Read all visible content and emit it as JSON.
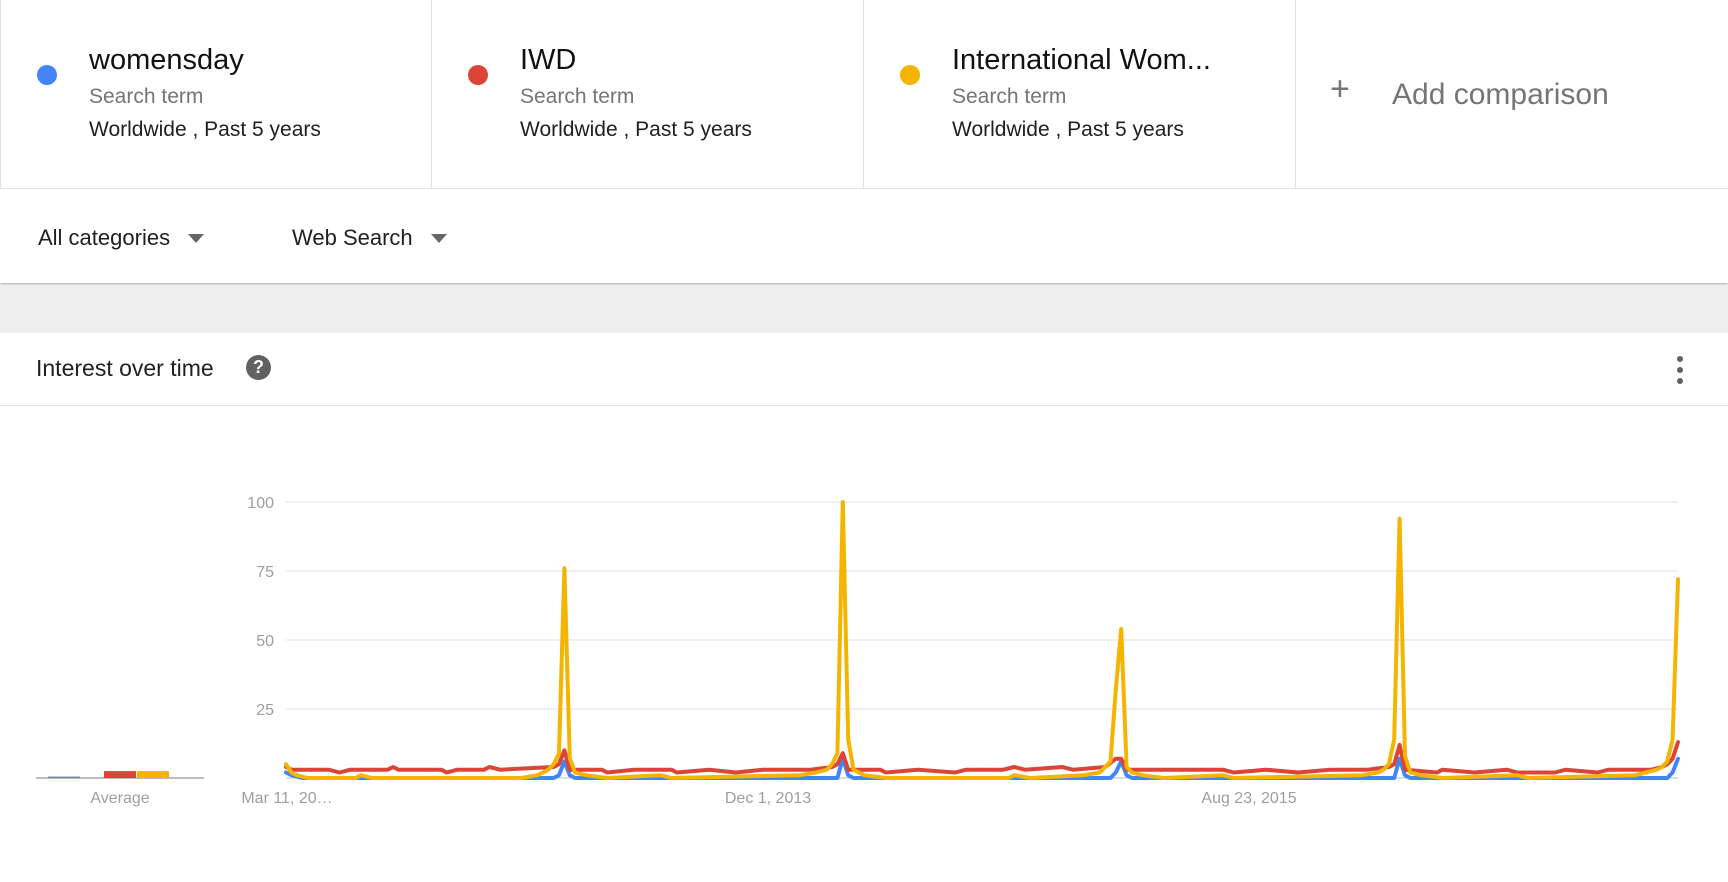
{
  "terms": [
    {
      "name": "womensday",
      "type": "Search term",
      "scope": "Worldwide , Past 5 years",
      "color": "#4285f4"
    },
    {
      "name": "IWD",
      "type": "Search term",
      "scope": "Worldwide , Past 5 years",
      "color": "#db4437"
    },
    {
      "name": "International Wom...",
      "type": "Search term",
      "scope": "Worldwide , Past 5 years",
      "color": "#f4b400"
    }
  ],
  "add_comparison": {
    "icon": "plus-icon",
    "label": "Add comparison"
  },
  "filters": {
    "category": "All categories",
    "search_type": "Web Search"
  },
  "card": {
    "title": "Interest over time",
    "help_icon": "question-icon",
    "menu_icon": "more-vert-icon"
  },
  "chart_data": {
    "type": "line",
    "title": "Interest over time",
    "ylim": [
      0,
      100
    ],
    "yticks": [
      25,
      50,
      75,
      100
    ],
    "x_tick_labels": [
      "Mar 11, 20…",
      "Dec 1, 2013",
      "Aug 23, 2015"
    ],
    "x_start": "2012-03-11",
    "x_end": "2017-03-05",
    "average_label": "Average",
    "average": [
      {
        "name": "womensday",
        "value": 0.5
      },
      {
        "name": "IWD",
        "value": 2.5
      },
      {
        "name": "International Wom...",
        "value": 2.5
      }
    ],
    "series": [
      {
        "name": "womensday",
        "color": "#4285f4",
        "points": [
          [
            "2012-03-11",
            2
          ],
          [
            "2012-03-18",
            1
          ],
          [
            "2012-04-01",
            0
          ],
          [
            "2013-02-24",
            0
          ],
          [
            "2013-03-03",
            1
          ],
          [
            "2013-03-10",
            6
          ],
          [
            "2013-03-17",
            1
          ],
          [
            "2013-03-24",
            0
          ],
          [
            "2014-03-02",
            0
          ],
          [
            "2014-03-09",
            7
          ],
          [
            "2014-03-16",
            1
          ],
          [
            "2014-03-23",
            0
          ],
          [
            "2015-02-22",
            0
          ],
          [
            "2015-03-01",
            2
          ],
          [
            "2015-03-08",
            6
          ],
          [
            "2015-03-15",
            1
          ],
          [
            "2015-03-22",
            0
          ],
          [
            "2016-02-28",
            0
          ],
          [
            "2016-03-06",
            7
          ],
          [
            "2016-03-13",
            1
          ],
          [
            "2016-03-20",
            0
          ],
          [
            "2017-02-19",
            0
          ],
          [
            "2017-02-26",
            2
          ],
          [
            "2017-03-05",
            7
          ]
        ]
      },
      {
        "name": "IWD",
        "color": "#db4437",
        "points": [
          [
            "2012-03-11",
            4
          ],
          [
            "2012-03-18",
            3
          ],
          [
            "2012-05-06",
            3
          ],
          [
            "2012-05-20",
            2
          ],
          [
            "2012-06-03",
            3
          ],
          [
            "2012-07-22",
            3
          ],
          [
            "2012-07-29",
            4
          ],
          [
            "2012-08-05",
            3
          ],
          [
            "2012-09-30",
            3
          ],
          [
            "2012-10-07",
            2
          ],
          [
            "2012-10-21",
            3
          ],
          [
            "2012-11-25",
            3
          ],
          [
            "2012-12-02",
            4
          ],
          [
            "2012-12-16",
            3
          ],
          [
            "2013-02-24",
            4
          ],
          [
            "2013-03-03",
            5
          ],
          [
            "2013-03-10",
            10
          ],
          [
            "2013-03-17",
            3
          ],
          [
            "2013-04-28",
            3
          ],
          [
            "2013-05-05",
            2
          ],
          [
            "2013-06-09",
            3
          ],
          [
            "2013-07-28",
            3
          ],
          [
            "2013-08-04",
            2
          ],
          [
            "2013-09-15",
            3
          ],
          [
            "2013-10-20",
            2
          ],
          [
            "2013-11-24",
            3
          ],
          [
            "2014-01-26",
            3
          ],
          [
            "2014-02-23",
            4
          ],
          [
            "2014-03-02",
            5
          ],
          [
            "2014-03-09",
            9
          ],
          [
            "2014-03-16",
            3
          ],
          [
            "2014-04-27",
            3
          ],
          [
            "2014-05-04",
            2
          ],
          [
            "2014-06-15",
            3
          ],
          [
            "2014-08-03",
            2
          ],
          [
            "2014-08-17",
            3
          ],
          [
            "2014-10-05",
            3
          ],
          [
            "2014-10-19",
            4
          ],
          [
            "2014-11-02",
            3
          ],
          [
            "2014-12-21",
            4
          ],
          [
            "2015-01-04",
            3
          ],
          [
            "2015-02-15",
            4
          ],
          [
            "2015-03-01",
            7
          ],
          [
            "2015-03-08",
            7
          ],
          [
            "2015-03-15",
            3
          ],
          [
            "2015-04-26",
            3
          ],
          [
            "2015-06-07",
            3
          ],
          [
            "2015-07-19",
            3
          ],
          [
            "2015-08-02",
            2
          ],
          [
            "2015-09-13",
            3
          ],
          [
            "2015-10-25",
            2
          ],
          [
            "2015-12-06",
            3
          ],
          [
            "2016-01-24",
            3
          ],
          [
            "2016-02-21",
            4
          ],
          [
            "2016-02-28",
            5
          ],
          [
            "2016-03-06",
            12
          ],
          [
            "2016-03-13",
            3
          ],
          [
            "2016-04-24",
            2
          ],
          [
            "2016-05-01",
            3
          ],
          [
            "2016-06-12",
            2
          ],
          [
            "2016-07-24",
            3
          ],
          [
            "2016-08-07",
            2
          ],
          [
            "2016-09-25",
            2
          ],
          [
            "2016-10-09",
            3
          ],
          [
            "2016-11-20",
            2
          ],
          [
            "2016-12-04",
            3
          ],
          [
            "2017-01-29",
            3
          ],
          [
            "2017-02-12",
            4
          ],
          [
            "2017-02-19",
            5
          ],
          [
            "2017-02-26",
            7
          ],
          [
            "2017-03-05",
            13
          ]
        ]
      },
      {
        "name": "International Wom...",
        "color": "#f4b400",
        "points": [
          [
            "2012-03-11",
            5
          ],
          [
            "2012-03-18",
            2
          ],
          [
            "2012-03-25",
            1
          ],
          [
            "2012-04-08",
            0
          ],
          [
            "2012-06-10",
            0
          ],
          [
            "2012-06-17",
            1
          ],
          [
            "2012-07-01",
            0
          ],
          [
            "2013-01-13",
            0
          ],
          [
            "2013-02-03",
            1
          ],
          [
            "2013-02-17",
            3
          ],
          [
            "2013-02-24",
            5
          ],
          [
            "2013-03-03",
            9
          ],
          [
            "2013-03-10",
            76
          ],
          [
            "2013-03-17",
            7
          ],
          [
            "2013-03-24",
            2
          ],
          [
            "2013-04-07",
            1
          ],
          [
            "2013-05-05",
            0
          ],
          [
            "2013-07-14",
            1
          ],
          [
            "2013-07-28",
            0
          ],
          [
            "2014-01-12",
            1
          ],
          [
            "2014-02-02",
            2
          ],
          [
            "2014-02-16",
            3
          ],
          [
            "2014-02-23",
            5
          ],
          [
            "2014-03-02",
            9
          ],
          [
            "2014-03-09",
            100
          ],
          [
            "2014-03-16",
            14
          ],
          [
            "2014-03-23",
            3
          ],
          [
            "2014-04-06",
            1
          ],
          [
            "2014-05-04",
            0
          ],
          [
            "2014-10-12",
            0
          ],
          [
            "2014-10-19",
            1
          ],
          [
            "2014-11-09",
            0
          ],
          [
            "2015-01-18",
            1
          ],
          [
            "2015-02-08",
            2
          ],
          [
            "2015-02-15",
            4
          ],
          [
            "2015-02-22",
            6
          ],
          [
            "2015-03-01",
            32
          ],
          [
            "2015-03-08",
            54
          ],
          [
            "2015-03-15",
            4
          ],
          [
            "2015-03-22",
            2
          ],
          [
            "2015-04-05",
            1
          ],
          [
            "2015-05-03",
            0
          ],
          [
            "2015-07-19",
            1
          ],
          [
            "2015-08-02",
            0
          ],
          [
            "2016-01-17",
            1
          ],
          [
            "2016-02-07",
            2
          ],
          [
            "2016-02-14",
            3
          ],
          [
            "2016-02-21",
            5
          ],
          [
            "2016-02-28",
            14
          ],
          [
            "2016-03-06",
            94
          ],
          [
            "2016-03-13",
            8
          ],
          [
            "2016-03-20",
            2
          ],
          [
            "2016-04-03",
            1
          ],
          [
            "2016-05-01",
            0
          ],
          [
            "2016-08-07",
            1
          ],
          [
            "2016-08-21",
            0
          ],
          [
            "2017-01-08",
            1
          ],
          [
            "2017-01-22",
            2
          ],
          [
            "2017-02-05",
            3
          ],
          [
            "2017-02-12",
            4
          ],
          [
            "2017-02-19",
            6
          ],
          [
            "2017-02-26",
            14
          ],
          [
            "2017-03-05",
            72
          ]
        ]
      }
    ]
  }
}
